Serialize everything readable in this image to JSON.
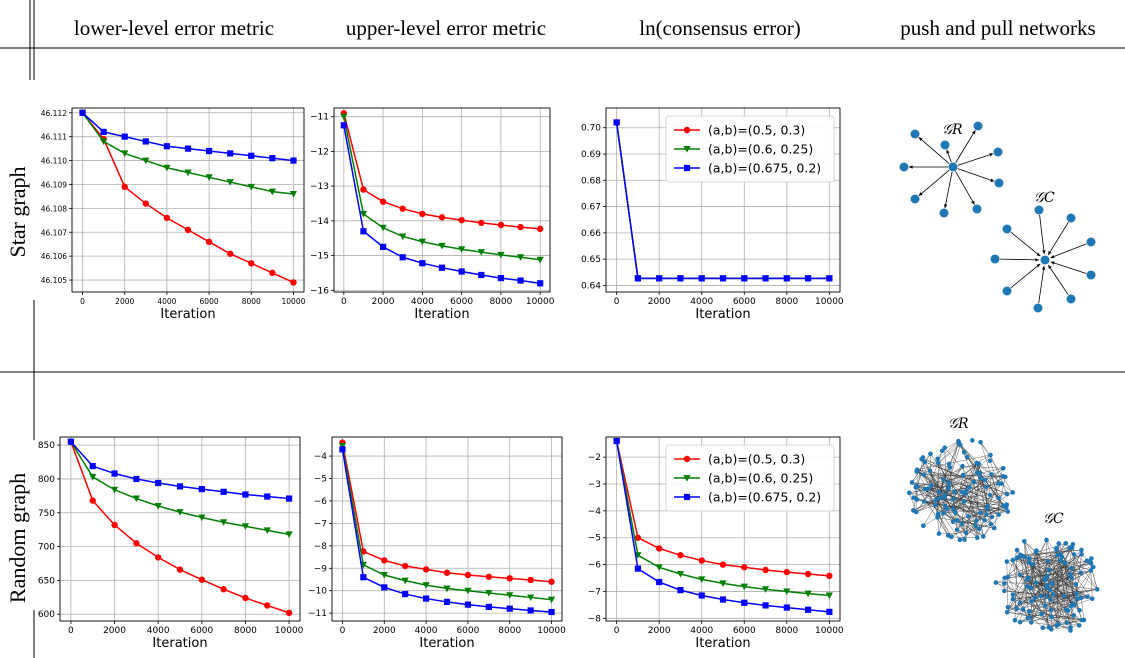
{
  "headers": {
    "col1": "lower-level error metric",
    "col2": "upper-level error metric",
    "col3": "ln(consensus error)",
    "col4": "push and pull networks"
  },
  "rows": {
    "star": "Star graph",
    "random": "Random graph"
  },
  "networks": {
    "gr_label": "𝒢R",
    "gc_label": "𝒢C"
  },
  "colors": {
    "s1": "#ff0000",
    "s2": "#008000",
    "s3": "#0000ff",
    "node": "#1f77b4"
  },
  "chart_data": [
    {
      "id": "star-lower",
      "type": "line",
      "xlabel": "Iteration",
      "grid": true,
      "x": [
        0,
        1000,
        2000,
        3000,
        4000,
        5000,
        6000,
        7000,
        8000,
        9000,
        10000
      ],
      "xlim": [
        -500,
        10500
      ],
      "ylim": [
        46.1045,
        46.1122
      ],
      "xticks": [
        0,
        2000,
        4000,
        6000,
        8000,
        10000
      ],
      "yticks": [
        46.105,
        46.106,
        46.107,
        46.108,
        46.109,
        46.11,
        46.111,
        46.112
      ],
      "ytick_decimals": 3,
      "series": [
        {
          "name": "(a,b)=(0.5, 0.3)",
          "marker": "circle",
          "values": [
            46.112,
            46.1109,
            46.1089,
            46.1082,
            46.1076,
            46.1071,
            46.1066,
            46.1061,
            46.1057,
            46.1053,
            46.1049
          ]
        },
        {
          "name": "(a,b)=(0.6, 0.25)",
          "marker": "tri",
          "values": [
            46.112,
            46.1108,
            46.1103,
            46.11,
            46.1097,
            46.1095,
            46.1093,
            46.1091,
            46.1089,
            46.1087,
            46.1086
          ]
        },
        {
          "name": "(a,b)=(0.675, 0.2)",
          "marker": "square",
          "values": [
            46.112,
            46.1112,
            46.111,
            46.1108,
            46.1106,
            46.1105,
            46.1104,
            46.1103,
            46.1102,
            46.1101,
            46.11
          ]
        }
      ]
    },
    {
      "id": "star-upper",
      "type": "line",
      "xlabel": "Iteration",
      "grid": true,
      "x": [
        0,
        1000,
        2000,
        3000,
        4000,
        5000,
        6000,
        7000,
        8000,
        9000,
        10000
      ],
      "xlim": [
        -500,
        10500
      ],
      "ylim": [
        -16.05,
        -10.75
      ],
      "xticks": [
        0,
        2000,
        4000,
        6000,
        8000,
        10000
      ],
      "yticks": [
        -16,
        -15,
        -14,
        -13,
        -12,
        -11
      ],
      "ytick_decimals": 0,
      "series": [
        {
          "name": "(a,b)=(0.5, 0.3)",
          "marker": "circle",
          "values": [
            -10.9,
            -13.1,
            -13.45,
            -13.65,
            -13.8,
            -13.9,
            -13.98,
            -14.06,
            -14.12,
            -14.18,
            -14.23
          ]
        },
        {
          "name": "(a,b)=(0.6, 0.25)",
          "marker": "tri",
          "values": [
            -11.0,
            -13.8,
            -14.2,
            -14.45,
            -14.6,
            -14.72,
            -14.82,
            -14.9,
            -14.98,
            -15.05,
            -15.12
          ]
        },
        {
          "name": "(a,b)=(0.675, 0.2)",
          "marker": "square",
          "values": [
            -11.25,
            -14.3,
            -14.75,
            -15.05,
            -15.22,
            -15.35,
            -15.46,
            -15.56,
            -15.65,
            -15.72,
            -15.8
          ]
        }
      ]
    },
    {
      "id": "star-consensus",
      "type": "line",
      "xlabel": "Iteration",
      "grid": true,
      "legend": "top-right",
      "x": [
        0,
        1000,
        2000,
        3000,
        4000,
        5000,
        6000,
        7000,
        8000,
        9000,
        10000
      ],
      "xlim": [
        -500,
        10500
      ],
      "ylim": [
        0.6375,
        0.7075
      ],
      "xticks": [
        0,
        2000,
        4000,
        6000,
        8000,
        10000
      ],
      "yticks": [
        0.64,
        0.65,
        0.66,
        0.67,
        0.68,
        0.69,
        0.7
      ],
      "ytick_decimals": 2,
      "series": [
        {
          "name": "(a,b)=(0.5, 0.3)",
          "marker": "circle",
          "values": [
            0.702,
            0.6427,
            0.6427,
            0.6427,
            0.6427,
            0.6427,
            0.6427,
            0.6427,
            0.6427,
            0.6427,
            0.6427
          ]
        },
        {
          "name": "(a,b)=(0.6, 0.25)",
          "marker": "tri",
          "values": [
            0.702,
            0.6427,
            0.6427,
            0.6427,
            0.6427,
            0.6427,
            0.6427,
            0.6427,
            0.6427,
            0.6427,
            0.6427
          ]
        },
        {
          "name": "(a,b)=(0.675, 0.2)",
          "marker": "square",
          "values": [
            0.702,
            0.6427,
            0.6427,
            0.6427,
            0.6427,
            0.6427,
            0.6427,
            0.6427,
            0.6427,
            0.6427,
            0.6427
          ]
        }
      ]
    },
    {
      "id": "random-lower",
      "type": "line",
      "xlabel": "Iteration",
      "grid": true,
      "x": [
        0,
        1000,
        2000,
        3000,
        4000,
        5000,
        6000,
        7000,
        8000,
        9000,
        10000
      ],
      "xlim": [
        -500,
        10500
      ],
      "ylim": [
        590,
        862
      ],
      "xticks": [
        0,
        2000,
        4000,
        6000,
        8000,
        10000
      ],
      "yticks": [
        600,
        650,
        700,
        750,
        800,
        850
      ],
      "ytick_decimals": 0,
      "series": [
        {
          "name": "(a,b)=(0.5, 0.3)",
          "marker": "circle",
          "values": [
            855,
            768,
            732,
            705,
            684,
            666,
            651,
            637,
            624,
            613,
            602
          ]
        },
        {
          "name": "(a,b)=(0.6, 0.25)",
          "marker": "tri",
          "values": [
            855,
            803,
            784,
            771,
            760,
            751,
            743,
            736,
            730,
            724,
            718
          ]
        },
        {
          "name": "(a,b)=(0.675, 0.2)",
          "marker": "square",
          "values": [
            855,
            819,
            808,
            800,
            794,
            789,
            785,
            781,
            777,
            774,
            771
          ]
        }
      ]
    },
    {
      "id": "random-upper",
      "type": "line",
      "xlabel": "Iteration",
      "grid": true,
      "x": [
        0,
        1000,
        2000,
        3000,
        4000,
        5000,
        6000,
        7000,
        8000,
        9000,
        10000
      ],
      "xlim": [
        -500,
        10500
      ],
      "ylim": [
        -11.35,
        -3.15
      ],
      "xticks": [
        0,
        2000,
        4000,
        6000,
        8000,
        10000
      ],
      "yticks": [
        -11,
        -10,
        -9,
        -8,
        -7,
        -6,
        -5,
        -4
      ],
      "ytick_decimals": 0,
      "series": [
        {
          "name": "(a,b)=(0.5, 0.3)",
          "marker": "circle",
          "values": [
            -3.4,
            -8.25,
            -8.65,
            -8.9,
            -9.05,
            -9.2,
            -9.3,
            -9.38,
            -9.45,
            -9.52,
            -9.6
          ]
        },
        {
          "name": "(a,b)=(0.6, 0.25)",
          "marker": "tri",
          "values": [
            -3.55,
            -8.85,
            -9.3,
            -9.55,
            -9.75,
            -9.9,
            -10.0,
            -10.1,
            -10.2,
            -10.3,
            -10.4
          ]
        },
        {
          "name": "(a,b)=(0.675, 0.2)",
          "marker": "square",
          "values": [
            -3.7,
            -9.4,
            -9.85,
            -10.15,
            -10.35,
            -10.5,
            -10.62,
            -10.72,
            -10.8,
            -10.88,
            -10.95
          ]
        }
      ]
    },
    {
      "id": "random-consensus",
      "type": "line",
      "xlabel": "Iteration",
      "grid": true,
      "legend": "top-right",
      "x": [
        0,
        1000,
        2000,
        3000,
        4000,
        5000,
        6000,
        7000,
        8000,
        9000,
        10000
      ],
      "xlim": [
        -500,
        10500
      ],
      "ylim": [
        -8.1,
        -1.25
      ],
      "xticks": [
        0,
        2000,
        4000,
        6000,
        8000,
        10000
      ],
      "yticks": [
        -8,
        -7,
        -6,
        -5,
        -4,
        -3,
        -2
      ],
      "ytick_decimals": 0,
      "series": [
        {
          "name": "(a,b)=(0.5, 0.3)",
          "marker": "circle",
          "values": [
            -1.4,
            -5.0,
            -5.4,
            -5.65,
            -5.85,
            -6.0,
            -6.1,
            -6.2,
            -6.28,
            -6.35,
            -6.42
          ]
        },
        {
          "name": "(a,b)=(0.6, 0.25)",
          "marker": "tri",
          "values": [
            -1.4,
            -5.65,
            -6.1,
            -6.35,
            -6.55,
            -6.7,
            -6.82,
            -6.92,
            -7.0,
            -7.08,
            -7.15
          ]
        },
        {
          "name": "(a,b)=(0.675, 0.2)",
          "marker": "square",
          "values": [
            -1.4,
            -6.15,
            -6.65,
            -6.95,
            -7.15,
            -7.3,
            -7.42,
            -7.52,
            -7.6,
            -7.68,
            -7.76
          ]
        }
      ]
    }
  ]
}
